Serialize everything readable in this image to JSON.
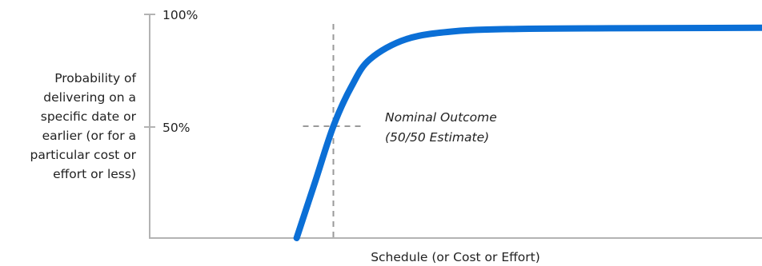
{
  "chart_data": {
    "type": "line",
    "title": "",
    "xlabel": "Schedule (or Cost or Effort)",
    "ylabel_lines": [
      "Probability of",
      "delivering on a",
      "specific date or",
      "earlier (or for a",
      "particular cost or",
      "effort or less)"
    ],
    "y_ticks": [
      {
        "value": 100,
        "label": "100%"
      },
      {
        "value": 50,
        "label": "50%"
      }
    ],
    "ylim": [
      0,
      100
    ],
    "grid": false,
    "legend": "none",
    "series": [
      {
        "color": "#0b6fd6",
        "points": [
          [
            0.24,
            0
          ],
          [
            0.27,
            25
          ],
          [
            0.3,
            50
          ],
          [
            0.33,
            68
          ],
          [
            0.36,
            80
          ],
          [
            0.42,
            89
          ],
          [
            0.5,
            92.5
          ],
          [
            0.6,
            93.5
          ],
          [
            0.75,
            93.8
          ],
          [
            1.0,
            94
          ]
        ]
      }
    ],
    "nominal": {
      "x": 0.3,
      "y": 50,
      "label_lines": [
        "Nominal Outcome",
        "(50/50 Estimate)"
      ]
    }
  },
  "colors": {
    "curve": "#0b6fd6",
    "axis": "#b3b3b3",
    "guide": "#9a9a9a",
    "text": "#222222"
  }
}
